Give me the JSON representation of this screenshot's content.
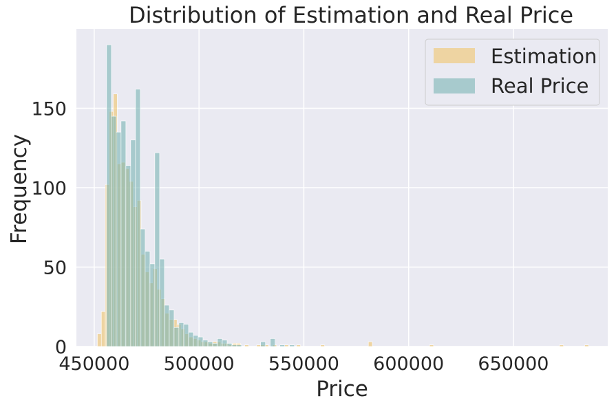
{
  "chart_data": {
    "type": "bar",
    "title": "Distribution of Estimation and Real Price",
    "xlabel": "Price",
    "ylabel": "Frequency",
    "xlim": [
      441500,
      695000
    ],
    "ylim": [
      0,
      200
    ],
    "xticks": [
      450000,
      500000,
      550000,
      600000,
      650000
    ],
    "xtick_labels": [
      "450000",
      "500000",
      "550000",
      "600000",
      "650000"
    ],
    "yticks": [
      0,
      50,
      100,
      150
    ],
    "ytick_labels": [
      "0",
      "50",
      "100",
      "150"
    ],
    "grid": true,
    "legend_position": "top-right",
    "series": [
      {
        "name": "Estimation",
        "color": "#f0c46c",
        "bin_width": 1900,
        "bins": [
          [
            451500,
            8
          ],
          [
            453400,
            22
          ],
          [
            455300,
            102
          ],
          [
            457200,
            148
          ],
          [
            459100,
            159
          ],
          [
            461000,
            115
          ],
          [
            462900,
            116
          ],
          [
            464800,
            112
          ],
          [
            466700,
            104
          ],
          [
            468600,
            88
          ],
          [
            470500,
            92
          ],
          [
            472400,
            58
          ],
          [
            474300,
            47
          ],
          [
            476200,
            40
          ],
          [
            478100,
            49
          ],
          [
            480000,
            36
          ],
          [
            481900,
            30
          ],
          [
            483800,
            21
          ],
          [
            485700,
            17
          ],
          [
            487600,
            17
          ],
          [
            489500,
            14
          ],
          [
            491400,
            11
          ],
          [
            493300,
            8
          ],
          [
            495200,
            6
          ],
          [
            497100,
            5
          ],
          [
            499000,
            4
          ],
          [
            500900,
            3
          ],
          [
            502800,
            3
          ],
          [
            504700,
            2
          ],
          [
            506600,
            3
          ],
          [
            508500,
            3
          ],
          [
            510400,
            2
          ],
          [
            512300,
            2
          ],
          [
            514200,
            1
          ],
          [
            516100,
            2
          ],
          [
            518000,
            2
          ],
          [
            521800,
            1
          ],
          [
            527500,
            1
          ],
          [
            529400,
            1
          ],
          [
            531300,
            1
          ],
          [
            535100,
            1
          ],
          [
            540800,
            1
          ],
          [
            546500,
            1
          ],
          [
            558000,
            1
          ],
          [
            580800,
            3
          ],
          [
            610000,
            1
          ],
          [
            672000,
            1
          ],
          [
            684000,
            1
          ]
        ]
      },
      {
        "name": "Real Price",
        "color": "#79b4b4",
        "bin_width": 2300,
        "bins": [
          [
            455900,
            190
          ],
          [
            458200,
            145
          ],
          [
            460500,
            135
          ],
          [
            462800,
            142
          ],
          [
            465100,
            114
          ],
          [
            467400,
            130
          ],
          [
            469700,
            162
          ],
          [
            472000,
            74
          ],
          [
            474300,
            60
          ],
          [
            476600,
            52
          ],
          [
            478900,
            122
          ],
          [
            481200,
            55
          ],
          [
            483500,
            26
          ],
          [
            485800,
            23
          ],
          [
            488100,
            12
          ],
          [
            490400,
            15
          ],
          [
            492700,
            14
          ],
          [
            495000,
            9
          ],
          [
            497300,
            7
          ],
          [
            499600,
            6
          ],
          [
            501900,
            4
          ],
          [
            504200,
            3
          ],
          [
            506500,
            2
          ],
          [
            508800,
            5
          ],
          [
            511100,
            4
          ],
          [
            513400,
            2
          ],
          [
            515700,
            1
          ],
          [
            518000,
            1
          ],
          [
            529400,
            3
          ],
          [
            534000,
            5
          ],
          [
            538600,
            1
          ],
          [
            543200,
            1
          ]
        ]
      }
    ]
  }
}
